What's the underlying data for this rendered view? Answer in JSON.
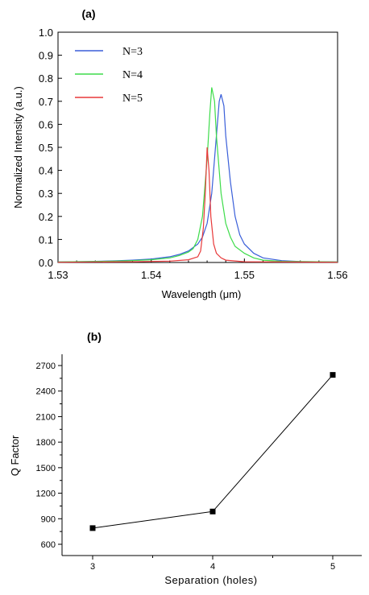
{
  "panel_labels": [
    "(a)",
    "(b)"
  ],
  "chart_data": [
    {
      "type": "line",
      "title": "",
      "xlabel": "Wavelength (μm)",
      "ylabel": "Normalized Intensity (a.u.)",
      "xlim": [
        1.53,
        1.56
      ],
      "ylim": [
        0.0,
        1.0
      ],
      "x_tick_labels": [
        "1.53",
        "1.54",
        "1.55",
        "1.56"
      ],
      "y_tick_labels": [
        "0.0",
        "0.1",
        "0.2",
        "0.3",
        "0.4",
        "0.5",
        "0.6",
        "0.7",
        "0.8",
        "0.9",
        "1.0"
      ],
      "legend_position": "top-left",
      "series": [
        {
          "name": "N=3",
          "color": "#3a5fd9",
          "x": [
            1.53,
            1.533,
            1.536,
            1.538,
            1.54,
            1.542,
            1.543,
            1.544,
            1.545,
            1.5455,
            1.546,
            1.5465,
            1.547,
            1.5473,
            1.5475,
            1.5478,
            1.548,
            1.5485,
            1.549,
            1.5495,
            1.55,
            1.551,
            1.552,
            1.554,
            1.556,
            1.56
          ],
          "y": [
            0.002,
            0.004,
            0.007,
            0.01,
            0.015,
            0.025,
            0.035,
            0.05,
            0.08,
            0.11,
            0.17,
            0.3,
            0.55,
            0.7,
            0.73,
            0.68,
            0.55,
            0.35,
            0.2,
            0.12,
            0.08,
            0.04,
            0.02,
            0.008,
            0.004,
            0.002
          ]
        },
        {
          "name": "N=4",
          "color": "#3ddc4a",
          "x": [
            1.53,
            1.535,
            1.538,
            1.54,
            1.542,
            1.543,
            1.544,
            1.5445,
            1.545,
            1.5455,
            1.546,
            1.5463,
            1.5465,
            1.5468,
            1.547,
            1.5475,
            1.548,
            1.5485,
            1.549,
            1.55,
            1.551,
            1.552,
            1.554,
            1.56
          ],
          "y": [
            0.002,
            0.005,
            0.008,
            0.012,
            0.02,
            0.03,
            0.045,
            0.06,
            0.1,
            0.2,
            0.45,
            0.65,
            0.76,
            0.7,
            0.55,
            0.3,
            0.17,
            0.11,
            0.07,
            0.04,
            0.02,
            0.01,
            0.005,
            0.002
          ]
        },
        {
          "name": "N=5",
          "color": "#e8393a",
          "x": [
            1.53,
            1.538,
            1.542,
            1.544,
            1.545,
            1.5453,
            1.5456,
            1.5458,
            1.546,
            1.5462,
            1.5464,
            1.5467,
            1.547,
            1.5475,
            1.548,
            1.55,
            1.56
          ],
          "y": [
            0.001,
            0.003,
            0.006,
            0.012,
            0.025,
            0.05,
            0.15,
            0.3,
            0.5,
            0.4,
            0.2,
            0.08,
            0.04,
            0.02,
            0.01,
            0.003,
            0.001
          ]
        }
      ]
    },
    {
      "type": "line",
      "title": "",
      "xlabel": "Separation (holes)",
      "ylabel": "Q Factor",
      "xlim": [
        2.8,
        5.2
      ],
      "ylim": [
        550,
        2750
      ],
      "x_ticks": [
        3,
        4,
        5
      ],
      "y_ticks": [
        600,
        900,
        1200,
        1500,
        1800,
        2100,
        2400,
        2700
      ],
      "series": [
        {
          "name": "",
          "color": "#000000",
          "x": [
            3,
            4,
            5
          ],
          "y": [
            790,
            985,
            2590
          ]
        }
      ]
    }
  ]
}
